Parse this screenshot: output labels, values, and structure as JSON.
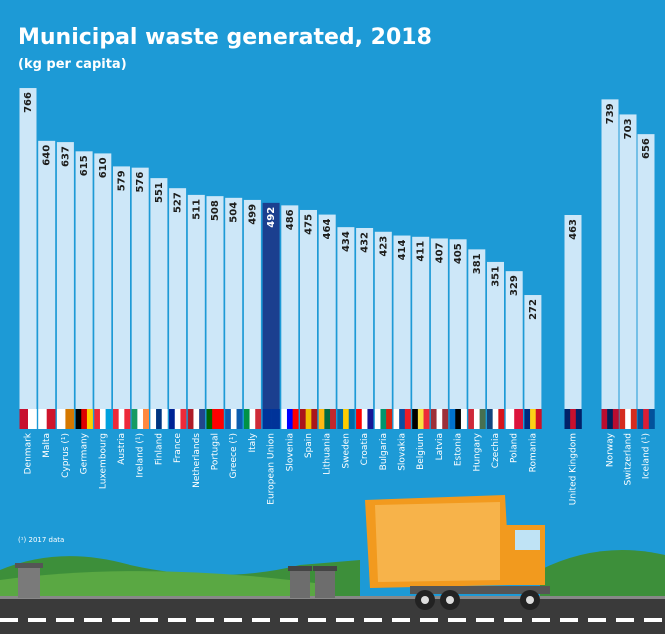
{
  "chart_data": {
    "type": "bar",
    "title": "Municipal waste generated, 2018",
    "subtitle": "(kg per capita)",
    "footnote": "(¹) 2017 data",
    "categories": [
      "Denmark",
      "Malta",
      "Cyprus (¹)",
      "Germany",
      "Luxembourg",
      "Austria",
      "Ireland (¹)",
      "Finland",
      "France",
      "Netherlands",
      "Portugal",
      "Greece (¹)",
      "Italy",
      "European Union",
      "Slovenia",
      "Spain",
      "Lithuania",
      "Sweden",
      "Croatia",
      "Bulgaria",
      "Slovakia",
      "Belgium",
      "Latvia",
      "Estonia",
      "Hungary",
      "Czechia",
      "Poland",
      "Romania",
      "United Kingdom",
      "Norway",
      "Switzerland",
      "Iceland (¹)"
    ],
    "values": [
      766,
      640,
      637,
      615,
      610,
      579,
      576,
      551,
      527,
      511,
      508,
      504,
      499,
      492,
      486,
      475,
      464,
      434,
      432,
      423,
      414,
      411,
      407,
      405,
      381,
      351,
      329,
      272,
      463,
      739,
      703,
      656
    ],
    "colors": [
      "#cde7f8",
      "#cde7f8",
      "#cde7f8",
      "#cde7f8",
      "#cde7f8",
      "#cde7f8",
      "#cde7f8",
      "#cde7f8",
      "#cde7f8",
      "#cde7f8",
      "#cde7f8",
      "#cde7f8",
      "#cde7f8",
      "#1b3f8f",
      "#cde7f8",
      "#cde7f8",
      "#cde7f8",
      "#cde7f8",
      "#cde7f8",
      "#cde7f8",
      "#cde7f8",
      "#cde7f8",
      "#cde7f8",
      "#cde7f8",
      "#cde7f8",
      "#cde7f8",
      "#cde7f8",
      "#cde7f8",
      "#cde7f8",
      "#cde7f8",
      "#cde7f8",
      "#cde7f8"
    ]
  }
}
